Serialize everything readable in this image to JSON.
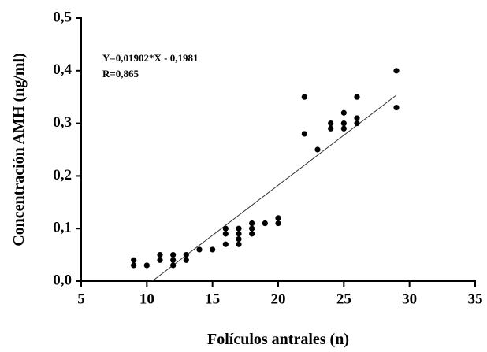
{
  "chart_data": {
    "type": "scatter",
    "x_label": "Folículos antrales (n)",
    "y_label": "Concentración AMH (ng/ml)",
    "annotations": [
      "Y=0,01902*X - 0,1981",
      "R=0,865"
    ],
    "color": "#000000",
    "x": [
      9,
      9,
      10,
      11,
      11,
      12,
      12,
      12,
      13,
      13,
      14,
      15,
      16,
      16,
      16,
      17,
      17,
      17,
      17,
      18,
      18,
      18,
      19,
      20,
      20,
      22,
      22,
      23,
      24,
      24,
      25,
      25,
      25,
      26,
      26,
      26,
      29,
      29
    ],
    "values": [
      0.04,
      0.03,
      0.03,
      0.05,
      0.04,
      0.05,
      0.04,
      0.03,
      0.05,
      0.04,
      0.06,
      0.06,
      0.1,
      0.09,
      0.07,
      0.1,
      0.09,
      0.08,
      0.07,
      0.11,
      0.1,
      0.09,
      0.11,
      0.12,
      0.11,
      0.35,
      0.28,
      0.25,
      0.3,
      0.29,
      0.32,
      0.3,
      0.29,
      0.35,
      0.31,
      0.3,
      0.4,
      0.33
    ],
    "trendline": {
      "slope": 0.01902,
      "intercept": -0.1981,
      "x_range": [
        9,
        29
      ]
    },
    "xlim": [
      5,
      35
    ],
    "xticks": [
      5,
      10,
      15,
      20,
      25,
      30,
      35
    ],
    "ylim": [
      0,
      0.5
    ],
    "yticks": [
      {
        "value": 0,
        "label": "0,0"
      },
      {
        "value": 0.1,
        "label": "0,1"
      },
      {
        "value": 0.2,
        "label": "0,2"
      },
      {
        "value": 0.3,
        "label": "0,3"
      },
      {
        "value": 0.4,
        "label": "0,4"
      },
      {
        "value": 0.5,
        "label": "0,5"
      }
    ],
    "grid": false
  }
}
